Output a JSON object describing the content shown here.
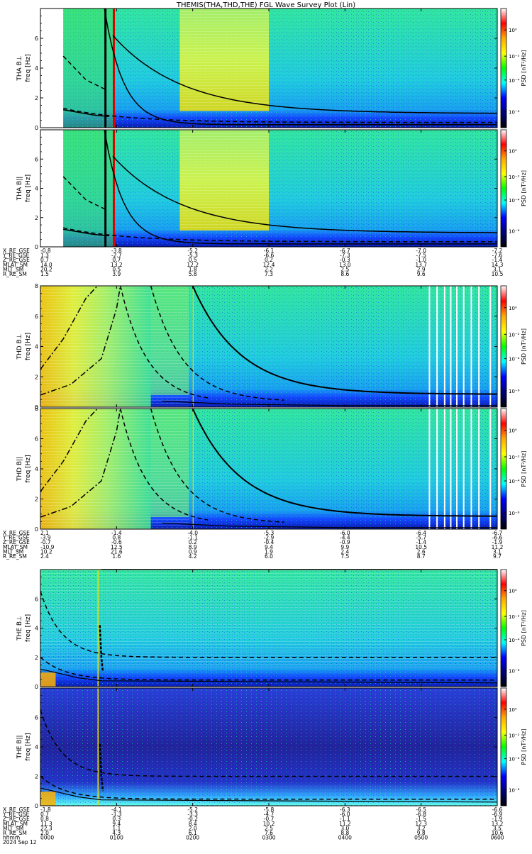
{
  "title": "THEMIS(THA,THD,THE) FGL Wave Survey Plot (Lin)",
  "chart_data": {
    "type": "heatmap",
    "title": "THEMIS(THA,THD,THE) FGL Wave Survey Plot (Lin)",
    "xlabel": "hhmm",
    "date_label": "2024 Sep 12",
    "x_tick_labels": [
      "0000",
      "0100",
      "0200",
      "0300",
      "0400",
      "0500",
      "0600"
    ],
    "x_range_hours": [
      0,
      6
    ],
    "colorbar": {
      "label": "PSD [nT²/Hz]",
      "scale": "log",
      "tick_labels": [
        "10⁰",
        "10⁻²",
        "10⁻⁴",
        "10⁻⁶"
      ],
      "colormap": [
        "#ffffff",
        "#ff0000",
        "#ffaa00",
        "#ffff00",
        "#00ff00",
        "#00ffff",
        "#0000ff",
        "#000080",
        "#000000"
      ]
    },
    "y_axis": {
      "label": "freq [Hz]",
      "ylim": [
        0,
        8
      ],
      "tick_labels": [
        "0",
        "2",
        "4",
        "6",
        "8"
      ]
    },
    "probes": [
      {
        "id": "THA",
        "panels": [
          {
            "ylabel": "THA B⊥",
            "label": "THA B⊥"
          },
          {
            "ylabel": "THA B||",
            "label": "THA B||"
          }
        ],
        "ephemeris": [
          {
            "name": "X_RE_GSE",
            "values": [
              "-0.8",
              "-3.8",
              "-5.2",
              "-6.1",
              "-6.7",
              "-7.0",
              "-7.2"
            ]
          },
          {
            "name": "Y_RE_GSE",
            "values": [
              "1.3",
              "-2.7",
              "-5.3",
              "-6.6",
              "-7.3",
              "-7.5",
              "-7.6"
            ]
          },
          {
            "name": "Z_RE_GSE",
            "values": [
              "0.7",
              "0.7",
              "0.5",
              "0.2",
              "-0.3",
              "-1.0",
              "-1.4"
            ]
          },
          {
            "name": "MLAT_SM",
            "values": [
              "14.0",
              "13.2",
              "12.2",
              "12.4",
              "13.0",
              "13.7",
              "14.3"
            ]
          },
          {
            "name": "MLT_SM",
            "values": [
              "20.2",
              "0.5",
              "1.8",
              "2.2",
              "2.5",
              "2.9",
              "3.1"
            ]
          },
          {
            "name": "R_RE_SM",
            "values": [
              "1.5",
              "3.9",
              "5.8",
              "7.3",
              "8.6",
              "9.6",
              "10.5"
            ]
          }
        ]
      },
      {
        "id": "THD",
        "panels": [
          {
            "ylabel": "THD B⊥",
            "label": "THD B⊥"
          },
          {
            "ylabel": "THD B||",
            "label": "THD B||"
          }
        ],
        "ephemeris": [
          {
            "name": "X_RE_GSE",
            "values": [
              "2.1",
              "-1.4",
              "-4.0",
              "-5.3",
              "-6.0",
              "-6.4",
              "-6.7"
            ]
          },
          {
            "name": "Y_RE_GSE",
            "values": [
              "-3.9",
              "0.8",
              "-1.1",
              "-2.9",
              "-4.4",
              "-5.7",
              "-6.6"
            ]
          },
          {
            "name": "Z_RE_GSE",
            "values": [
              "-0.7",
              "-0.6",
              "0.2",
              "-0.4",
              "-0.9",
              "-1.4",
              "-1.9"
            ]
          },
          {
            "name": "MLAT_SM",
            "values": [
              "-10.9",
              "12.5",
              "8.9",
              "9.4",
              "9.9",
              "10.5",
              "11.2"
            ]
          },
          {
            "name": "MLT_SM",
            "values": [
              "10.2",
              "21.6",
              "0.9",
              "1.9",
              "2.4",
              "2.6",
              "3.1"
            ]
          },
          {
            "name": "R_RE_SM",
            "values": [
              "2.4",
              "1.6",
              "4.2",
              "6.0",
              "7.5",
              "8.7",
              "9.7"
            ]
          }
        ]
      },
      {
        "id": "THE",
        "panels": [
          {
            "ylabel": "THE B⊥",
            "label": "THE B⊥"
          },
          {
            "ylabel": "THE B||",
            "label": "THE B||"
          }
        ],
        "ephemeris": [
          {
            "name": "X_RE_GSE",
            "values": [
              "-1.8",
              "-4.1",
              "-5.2",
              "-5.8",
              "-6.3",
              "-6.5",
              "-6.6"
            ]
          },
          {
            "name": "Y_RE_GSE",
            "values": [
              "0.7",
              "-1.3",
              "-3.3",
              "-4.7",
              "-6.0",
              "-6.8",
              "-6.9"
            ]
          },
          {
            "name": "Z_RE_GSE",
            "values": [
              "0.8",
              "0.3",
              "-0.2",
              "-0.7",
              "-1.1",
              "-1.5",
              "-1.9"
            ]
          },
          {
            "name": "MLAT_SM",
            "values": [
              "11.3",
              "9.4",
              "8.4",
              "10.2",
              "11.2",
              "12.3",
              "13.2"
            ]
          },
          {
            "name": "MLT_SM",
            "values": [
              "22.3",
              "1.1",
              "2.0",
              "2.5",
              "3.0",
              "3.2",
              "3.5"
            ]
          },
          {
            "name": "R_RE_SM",
            "values": [
              "2.0",
              "4.3",
              "6.1",
              "7.6",
              "8.8",
              "9.8",
              "10.6"
            ]
          }
        ]
      }
    ]
  },
  "ui": {
    "colors": {
      "background": "#ffffff",
      "curve": "#000000",
      "gap": "#ffffff"
    }
  }
}
